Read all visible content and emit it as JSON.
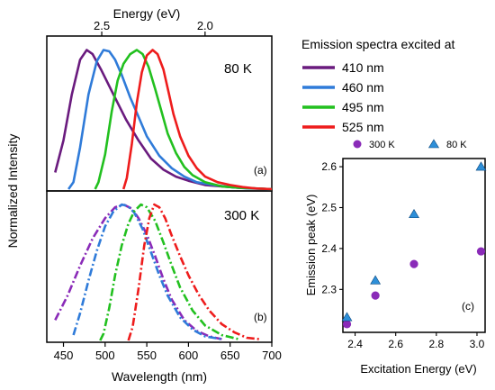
{
  "chart_data": [
    {
      "type": "line",
      "panel_label": "(a)",
      "temperature_label": "80 K",
      "top_axis_label": "Energy (eV)",
      "top_axis_ticks": [
        2.5,
        2.0
      ],
      "ylabel": "Normalized Intensity",
      "xlim": [
        430,
        700
      ],
      "ylim": [
        0,
        1.1
      ],
      "series": [
        {
          "name": "410 nm",
          "color": "#6a1b7e",
          "x": [
            440,
            450,
            460,
            470,
            478,
            485,
            495,
            505,
            515,
            525,
            540,
            555,
            570,
            585,
            600,
            620,
            640,
            660,
            680,
            700
          ],
          "y": [
            0.12,
            0.35,
            0.68,
            0.93,
            1.0,
            0.97,
            0.86,
            0.74,
            0.62,
            0.5,
            0.35,
            0.22,
            0.14,
            0.09,
            0.06,
            0.03,
            0.02,
            0.01,
            0.005,
            0.0
          ]
        },
        {
          "name": "460 nm",
          "color": "#2f7bd9",
          "x": [
            456,
            462,
            470,
            480,
            490,
            498,
            505,
            512,
            520,
            530,
            540,
            550,
            565,
            580,
            595,
            610,
            630,
            650,
            670,
            700
          ],
          "y": [
            0.0,
            0.05,
            0.3,
            0.68,
            0.92,
            1.0,
            0.99,
            0.93,
            0.82,
            0.66,
            0.52,
            0.38,
            0.24,
            0.15,
            0.09,
            0.05,
            0.03,
            0.015,
            0.005,
            0.0
          ]
        },
        {
          "name": "495 nm",
          "color": "#22c01f",
          "x": [
            488,
            492,
            500,
            508,
            515,
            522,
            530,
            538,
            545,
            552,
            560,
            568,
            575,
            585,
            595,
            605,
            620,
            640,
            660,
            680,
            700
          ],
          "y": [
            0.0,
            0.05,
            0.25,
            0.56,
            0.78,
            0.9,
            0.97,
            1.0,
            0.97,
            0.88,
            0.72,
            0.55,
            0.4,
            0.26,
            0.16,
            0.1,
            0.05,
            0.02,
            0.01,
            0.005,
            0.0
          ]
        },
        {
          "name": "525 nm",
          "color": "#ee1c1c",
          "x": [
            522,
            526,
            532,
            538,
            544,
            550,
            557,
            563,
            570,
            576,
            582,
            590,
            600,
            610,
            620,
            635,
            650,
            665,
            680,
            700
          ],
          "y": [
            0.0,
            0.08,
            0.32,
            0.62,
            0.84,
            0.96,
            1.0,
            0.97,
            0.86,
            0.7,
            0.54,
            0.38,
            0.24,
            0.15,
            0.09,
            0.05,
            0.03,
            0.015,
            0.005,
            0.0
          ]
        }
      ]
    },
    {
      "type": "line",
      "panel_label": "(b)",
      "temperature_label": "300 K",
      "xlabel": "Wavelength (nm)",
      "xticks": [
        450,
        500,
        550,
        600,
        650,
        700
      ],
      "xlim": [
        430,
        700
      ],
      "ylim": [
        0,
        1.1
      ],
      "line_style": "dashed",
      "series": [
        {
          "name": "410 nm",
          "color": "#8a2bb8",
          "x": [
            440,
            455,
            470,
            485,
            500,
            512,
            522,
            532,
            540,
            550,
            560,
            570,
            580,
            595,
            610,
            625,
            640
          ],
          "y": [
            0.15,
            0.33,
            0.55,
            0.75,
            0.9,
            0.98,
            1.0,
            0.97,
            0.9,
            0.78,
            0.62,
            0.45,
            0.3,
            0.15,
            0.07,
            0.03,
            0.01
          ]
        },
        {
          "name": "460 nm",
          "color": "#2f7bd9",
          "x": [
            462,
            470,
            480,
            490,
            500,
            510,
            520,
            527,
            535,
            545,
            555,
            565,
            575,
            590,
            605,
            620,
            640
          ],
          "y": [
            0.04,
            0.2,
            0.44,
            0.66,
            0.84,
            0.95,
            1.0,
            0.99,
            0.94,
            0.82,
            0.65,
            0.48,
            0.33,
            0.17,
            0.08,
            0.03,
            0.01
          ]
        },
        {
          "name": "495 nm",
          "color": "#22c01f",
          "x": [
            494,
            498,
            505,
            512,
            520,
            528,
            535,
            543,
            550,
            560,
            570,
            580,
            590,
            605,
            620,
            640,
            660
          ],
          "y": [
            0.0,
            0.05,
            0.24,
            0.48,
            0.7,
            0.86,
            0.95,
            1.0,
            0.98,
            0.88,
            0.72,
            0.55,
            0.39,
            0.22,
            0.11,
            0.04,
            0.01
          ]
        },
        {
          "name": "525 nm",
          "color": "#ee1c1c",
          "x": [
            528,
            533,
            540,
            547,
            553,
            559,
            565,
            572,
            580,
            590,
            600,
            612,
            625,
            640,
            655,
            670,
            685
          ],
          "y": [
            0.0,
            0.1,
            0.38,
            0.7,
            0.9,
            1.0,
            0.98,
            0.9,
            0.77,
            0.62,
            0.48,
            0.34,
            0.22,
            0.12,
            0.06,
            0.02,
            0.01
          ]
        }
      ]
    },
    {
      "type": "scatter",
      "panel_label": "(c)",
      "xlabel": "Excitation Energy (eV)",
      "ylabel": "Emission peak (eV)",
      "xlim": [
        2.34,
        3.04
      ],
      "ylim": [
        2.195,
        2.62
      ],
      "xticks": [
        2.4,
        2.6,
        2.8,
        3.0
      ],
      "yticks": [
        2.3,
        2.4,
        2.5,
        2.6
      ],
      "series": [
        {
          "name": "300 K",
          "marker": "circle",
          "color": "#8a2bb8",
          "x": [
            2.36,
            2.5,
            2.69,
            3.02
          ],
          "y": [
            2.215,
            2.285,
            2.362,
            2.393
          ]
        },
        {
          "name": "80 K",
          "marker": "triangle",
          "color": "#2e8fd8",
          "x": [
            2.36,
            2.5,
            2.69,
            3.02
          ],
          "y": [
            2.232,
            2.322,
            2.484,
            2.6
          ]
        }
      ]
    }
  ],
  "legend": {
    "title": "Emission spectra excited at",
    "items": [
      {
        "label": "410 nm",
        "color": "#6a1b7e"
      },
      {
        "label": "460 nm",
        "color": "#2f7bd9"
      },
      {
        "label": "495 nm",
        "color": "#22c01f"
      },
      {
        "label": "525 nm",
        "color": "#ee1c1c"
      }
    ]
  }
}
